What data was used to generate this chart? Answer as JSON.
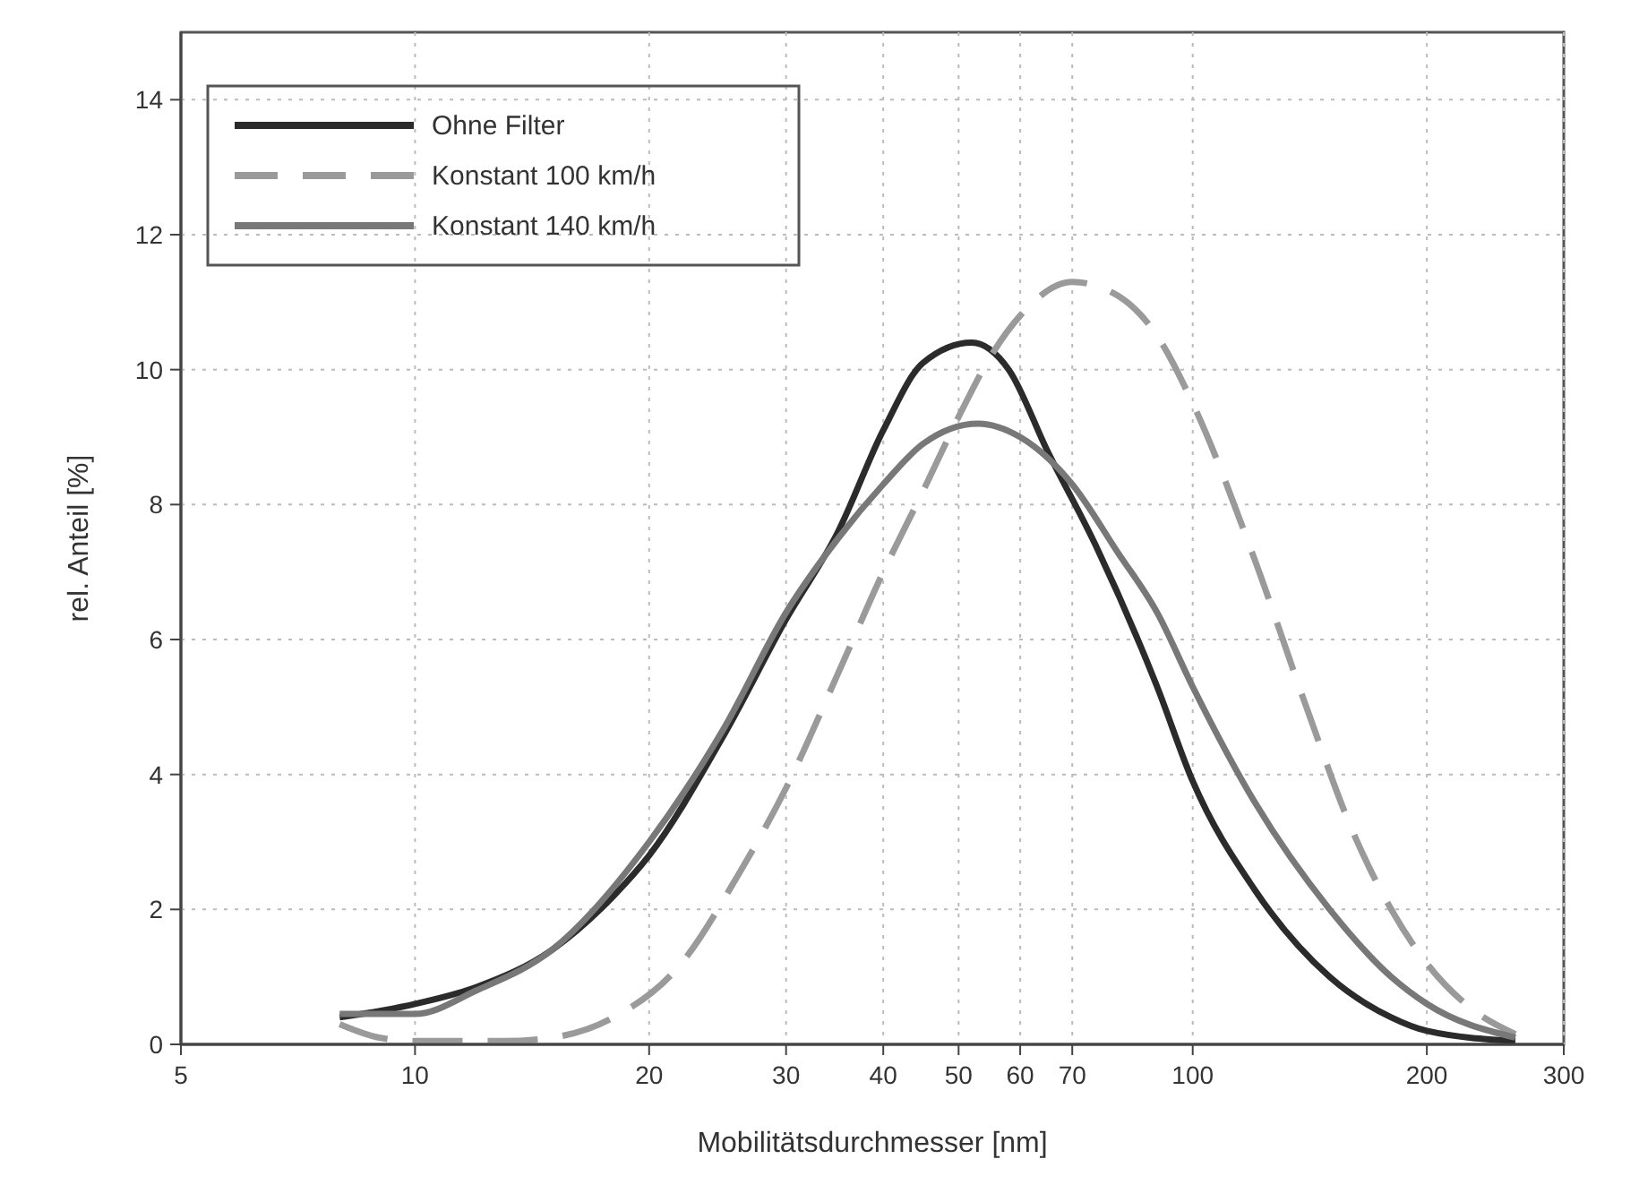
{
  "chart_data": {
    "type": "line",
    "xlabel": "Mobilitätsdurchmesser [nm]",
    "ylabel": "rel. Anteil [%]",
    "log": "x",
    "xlim": [
      5,
      300
    ],
    "xticks": [
      5,
      10,
      20,
      30,
      40,
      50,
      60,
      70,
      100,
      200,
      300
    ],
    "ylim": [
      0,
      15
    ],
    "yticks": [
      0,
      2,
      4,
      6,
      8,
      10,
      12,
      14
    ],
    "grid": true,
    "legend": "top left",
    "series": [
      {
        "name": "Ohne Filter",
        "color": "#2b2b2b",
        "line_style": "solid",
        "x": [
          8,
          10,
          12,
          15,
          18,
          20,
          25,
          30,
          35,
          40,
          45,
          52,
          58,
          65,
          75,
          90,
          100,
          120,
          150,
          180,
          200,
          260
        ],
        "values": [
          0.4,
          0.6,
          0.85,
          1.4,
          2.2,
          2.8,
          4.6,
          6.3,
          7.6,
          9.1,
          10.1,
          10.4,
          10.0,
          8.8,
          7.4,
          5.3,
          3.9,
          2.3,
          1.0,
          0.4,
          0.2,
          0.05
        ]
      },
      {
        "name": "Konstant 100 km/h",
        "color": "#9a9a9a",
        "line_style": "dashed",
        "x": [
          8,
          9,
          10,
          13,
          15,
          18,
          22,
          26,
          30,
          35,
          40,
          45,
          50,
          55,
          60,
          70,
          80,
          90,
          100,
          120,
          140,
          160,
          180,
          200,
          230,
          260
        ],
        "values": [
          0.3,
          0.1,
          0.05,
          0.05,
          0.1,
          0.4,
          1.2,
          2.5,
          3.8,
          5.5,
          7.0,
          8.2,
          9.3,
          10.2,
          10.8,
          11.3,
          11.1,
          10.5,
          9.5,
          7.2,
          5.0,
          3.2,
          2.0,
          1.2,
          0.5,
          0.15
        ]
      },
      {
        "name": "Konstant 140 km/h",
        "color": "#787878",
        "line_style": "solid",
        "x": [
          8,
          10,
          12,
          15,
          20,
          25,
          30,
          35,
          40,
          45,
          53,
          60,
          70,
          80,
          90,
          100,
          120,
          150,
          180,
          200,
          260
        ],
        "values": [
          0.45,
          0.45,
          0.8,
          1.4,
          3.0,
          4.7,
          6.4,
          7.5,
          8.3,
          8.9,
          9.2,
          9.0,
          8.3,
          7.3,
          6.4,
          5.3,
          3.6,
          2.0,
          1.0,
          0.6,
          0.1
        ]
      }
    ]
  }
}
